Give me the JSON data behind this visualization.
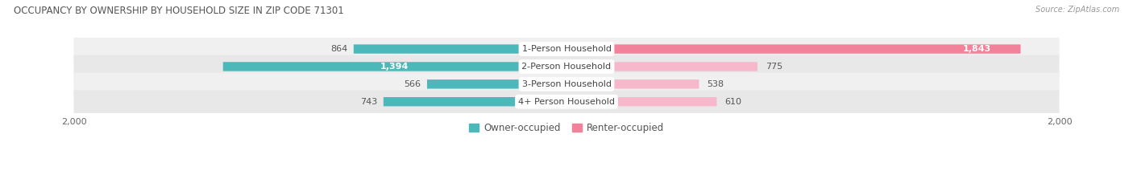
{
  "title": "OCCUPANCY BY OWNERSHIP BY HOUSEHOLD SIZE IN ZIP CODE 71301",
  "source": "Source: ZipAtlas.com",
  "categories": [
    "1-Person Household",
    "2-Person Household",
    "3-Person Household",
    "4+ Person Household"
  ],
  "owner_values": [
    864,
    1394,
    566,
    743
  ],
  "renter_values": [
    1843,
    775,
    538,
    610
  ],
  "max_value": 2000,
  "owner_color": "#4db8ba",
  "renter_color": "#f2819a",
  "renter_color_light": "#f7b8cc",
  "row_bg_color_odd": "#f0f0f0",
  "row_bg_color_even": "#e6e6e6",
  "owner_label": "Owner-occupied",
  "renter_label": "Renter-occupied",
  "title_fontsize": 8.5,
  "source_fontsize": 7,
  "value_fontsize": 8,
  "cat_label_fontsize": 8,
  "axis_tick_fontsize": 8,
  "legend_fontsize": 8.5
}
